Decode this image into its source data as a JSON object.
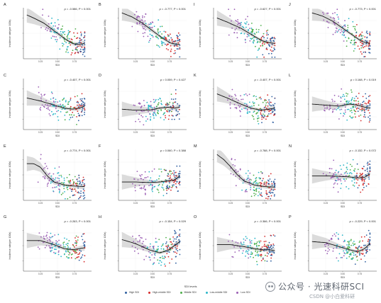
{
  "figure": {
    "legend_title": "SDI levels",
    "legend": [
      {
        "label": "High SDI",
        "color": "#2f5fa0"
      },
      {
        "label": "High-middle SDI",
        "color": "#d62b2b"
      },
      {
        "label": "Middle SDI",
        "color": "#4dae4a"
      },
      {
        "label": "Low-middle SDI",
        "color": "#2bb6c9"
      },
      {
        "label": "Low SDI",
        "color": "#9b5fb4"
      }
    ],
    "watermark": "公众号 · 光速科研SCI",
    "credit": "CSDN @小白爱科研"
  },
  "chart_data": [
    {
      "type": "scatter",
      "panel": "A",
      "stat": "ρ = -0.586, P < 0.001",
      "xlabel": "SDI",
      "ylabel": "Incidence rate(per 100k)",
      "xticks": [
        "0.25",
        "0.50",
        "0.75"
      ],
      "curve": [
        [
          0.05,
          0.86
        ],
        [
          0.15,
          0.8
        ],
        [
          0.3,
          0.7
        ],
        [
          0.45,
          0.55
        ],
        [
          0.6,
          0.4
        ],
        [
          0.72,
          0.3
        ],
        [
          0.8,
          0.28
        ],
        [
          0.9,
          0.3
        ]
      ],
      "seed": 11
    },
    {
      "type": "scatter",
      "panel": "B",
      "stat": "ρ = -0.777, P < 0.001",
      "xlabel": "SDI",
      "ylabel": "Incidence rate(per 100k)",
      "xticks": [
        "0.25",
        "0.50",
        "0.75"
      ],
      "curve": [
        [
          0.05,
          0.9
        ],
        [
          0.2,
          0.82
        ],
        [
          0.35,
          0.7
        ],
        [
          0.5,
          0.55
        ],
        [
          0.65,
          0.4
        ],
        [
          0.78,
          0.3
        ],
        [
          0.9,
          0.28
        ]
      ],
      "seed": 12
    },
    {
      "type": "scatter",
      "panel": "I",
      "stat": "ρ = -0.627, P < 0.001",
      "xlabel": "SDI",
      "ylabel": "Incidence rate(per 100k)",
      "xticks": [
        "0.25",
        "0.50",
        "0.75"
      ],
      "curve": [
        [
          0.05,
          0.8
        ],
        [
          0.2,
          0.72
        ],
        [
          0.4,
          0.6
        ],
        [
          0.55,
          0.48
        ],
        [
          0.7,
          0.36
        ],
        [
          0.8,
          0.32
        ],
        [
          0.9,
          0.3
        ]
      ],
      "seed": 13
    },
    {
      "type": "scatter",
      "panel": "J",
      "stat": "ρ = -0.773, P < 0.001",
      "xlabel": "SDI",
      "ylabel": "Incidence rate(per 100k)",
      "xticks": [
        "0.25",
        "0.50",
        "0.75"
      ],
      "curve": [
        [
          0.05,
          0.9
        ],
        [
          0.2,
          0.84
        ],
        [
          0.35,
          0.74
        ],
        [
          0.5,
          0.6
        ],
        [
          0.65,
          0.46
        ],
        [
          0.78,
          0.34
        ],
        [
          0.9,
          0.3
        ]
      ],
      "seed": 14
    },
    {
      "type": "scatter",
      "panel": "C",
      "stat": "ρ = -0.407, P < 0.001",
      "xlabel": "SDI",
      "ylabel": "Incidence rate(per 100k)",
      "xticks": [
        "0.25",
        "0.50",
        "0.75"
      ],
      "curve": [
        [
          0.05,
          0.62
        ],
        [
          0.25,
          0.56
        ],
        [
          0.45,
          0.48
        ],
        [
          0.6,
          0.42
        ],
        [
          0.72,
          0.4
        ],
        [
          0.82,
          0.42
        ],
        [
          0.9,
          0.46
        ]
      ],
      "seed": 15
    },
    {
      "type": "scatter",
      "panel": "D",
      "stat": "ρ = 0.059, P = 0.427",
      "xlabel": "SDI",
      "ylabel": "Incidence rate(per 100k)",
      "xticks": [
        "0.25",
        "0.50",
        "0.75"
      ],
      "curve": [
        [
          0.05,
          0.4
        ],
        [
          0.25,
          0.38
        ],
        [
          0.45,
          0.38
        ],
        [
          0.6,
          0.42
        ],
        [
          0.72,
          0.44
        ],
        [
          0.82,
          0.42
        ],
        [
          0.9,
          0.44
        ]
      ],
      "seed": 16
    },
    {
      "type": "scatter",
      "panel": "K",
      "stat": "ρ = -0.407, P < 0.001",
      "xlabel": "SDI",
      "ylabel": "Incidence rate(per 100k)",
      "xticks": [
        "0.25",
        "0.50",
        "0.75"
      ],
      "curve": [
        [
          0.05,
          0.7
        ],
        [
          0.2,
          0.62
        ],
        [
          0.4,
          0.5
        ],
        [
          0.55,
          0.42
        ],
        [
          0.7,
          0.38
        ],
        [
          0.8,
          0.4
        ],
        [
          0.9,
          0.42
        ]
      ],
      "seed": 17
    },
    {
      "type": "scatter",
      "panel": "L",
      "stat": "ρ = 0.168, P = 0.019",
      "xlabel": "SDI",
      "ylabel": "Incidence rate(per 100k)",
      "xticks": [
        "0.25",
        "0.50",
        "0.75"
      ],
      "curve": [
        [
          0.05,
          0.5
        ],
        [
          0.25,
          0.48
        ],
        [
          0.45,
          0.46
        ],
        [
          0.6,
          0.5
        ],
        [
          0.72,
          0.48
        ],
        [
          0.82,
          0.44
        ],
        [
          0.9,
          0.42
        ]
      ],
      "seed": 18
    },
    {
      "type": "scatter",
      "panel": "E",
      "stat": "ρ = -0.774, P < 0.001",
      "xlabel": "SDI",
      "ylabel": "Incidence rate(per 100k)",
      "xticks": [
        "0.25",
        "0.50",
        "0.75"
      ],
      "curve": [
        [
          0.05,
          0.72
        ],
        [
          0.15,
          0.72
        ],
        [
          0.25,
          0.65
        ],
        [
          0.35,
          0.48
        ],
        [
          0.45,
          0.36
        ],
        [
          0.6,
          0.3
        ],
        [
          0.75,
          0.28
        ],
        [
          0.9,
          0.27
        ]
      ],
      "seed": 19
    },
    {
      "type": "scatter",
      "panel": "F",
      "stat": "ρ = 0.060, P = 0.388",
      "xlabel": "SDI",
      "ylabel": "Incidence rate(per 100k)",
      "xticks": [
        "0.25",
        "0.50",
        "0.75"
      ],
      "curve": [
        [
          0.05,
          0.36
        ],
        [
          0.25,
          0.36
        ],
        [
          0.45,
          0.35
        ],
        [
          0.6,
          0.36
        ],
        [
          0.72,
          0.38
        ],
        [
          0.82,
          0.4
        ],
        [
          0.9,
          0.48
        ]
      ],
      "seed": 20
    },
    {
      "type": "scatter",
      "panel": "M",
      "stat": "ρ = -0.788, P < 0.001",
      "xlabel": "SDI",
      "ylabel": "Incidence rate(per 100k)",
      "xticks": [
        "0.25",
        "0.50",
        "0.75"
      ],
      "curve": [
        [
          0.05,
          0.9
        ],
        [
          0.15,
          0.8
        ],
        [
          0.25,
          0.66
        ],
        [
          0.35,
          0.5
        ],
        [
          0.45,
          0.38
        ],
        [
          0.6,
          0.3
        ],
        [
          0.75,
          0.27
        ],
        [
          0.9,
          0.26
        ]
      ],
      "seed": 21
    },
    {
      "type": "scatter",
      "panel": "N",
      "stat": "ρ = -0.132, P = 0.072",
      "xlabel": "SDI",
      "ylabel": "Incidence rate(per 100k)",
      "xticks": [
        "0.25",
        "0.50",
        "0.75"
      ],
      "curve": [
        [
          0.05,
          0.48
        ],
        [
          0.25,
          0.48
        ],
        [
          0.45,
          0.47
        ],
        [
          0.6,
          0.46
        ],
        [
          0.72,
          0.44
        ],
        [
          0.82,
          0.45
        ],
        [
          0.9,
          0.52
        ]
      ],
      "seed": 22
    },
    {
      "type": "scatter",
      "panel": "G",
      "stat": "ρ = -0.263, P < 0.001",
      "xlabel": "SDI",
      "ylabel": "Incidence rate(per 100k)",
      "xticks": [
        "0.25",
        "0.50",
        "0.75"
      ],
      "curve": [
        [
          0.05,
          0.6
        ],
        [
          0.25,
          0.6
        ],
        [
          0.45,
          0.52
        ],
        [
          0.6,
          0.44
        ],
        [
          0.72,
          0.42
        ],
        [
          0.82,
          0.44
        ],
        [
          0.9,
          0.46
        ]
      ],
      "seed": 23
    },
    {
      "type": "scatter",
      "panel": "H",
      "stat": "ρ = -0.154, P = 0.029",
      "xlabel": "SDI",
      "ylabel": "Incidence rate(per 100k)",
      "xticks": [
        "0.25",
        "0.50",
        "0.75"
      ],
      "curve": [
        [
          0.05,
          0.62
        ],
        [
          0.25,
          0.54
        ],
        [
          0.45,
          0.42
        ],
        [
          0.6,
          0.36
        ],
        [
          0.72,
          0.4
        ],
        [
          0.82,
          0.5
        ],
        [
          0.9,
          0.58
        ]
      ],
      "seed": 24
    },
    {
      "type": "scatter",
      "panel": "O",
      "stat": "ρ = -0.366, P < 0.001",
      "xlabel": "SDI",
      "ylabel": "Incidence rate(per 100k)",
      "xticks": [
        "0.25",
        "0.50",
        "0.75"
      ],
      "curve": [
        [
          0.05,
          0.52
        ],
        [
          0.25,
          0.52
        ],
        [
          0.45,
          0.48
        ],
        [
          0.6,
          0.44
        ],
        [
          0.72,
          0.42
        ],
        [
          0.82,
          0.42
        ],
        [
          0.9,
          0.4
        ]
      ],
      "seed": 25
    },
    {
      "type": "scatter",
      "panel": "P",
      "stat": "ρ = -0.229, P < 0.001",
      "xlabel": "SDI",
      "ylabel": "Incidence rate(per 100k)",
      "xticks": [
        "0.25",
        "0.50",
        "0.75"
      ],
      "curve": [
        [
          0.05,
          0.58
        ],
        [
          0.25,
          0.56
        ],
        [
          0.45,
          0.48
        ],
        [
          0.6,
          0.42
        ],
        [
          0.72,
          0.38
        ],
        [
          0.82,
          0.44
        ],
        [
          0.9,
          0.54
        ]
      ],
      "seed": 26
    }
  ]
}
